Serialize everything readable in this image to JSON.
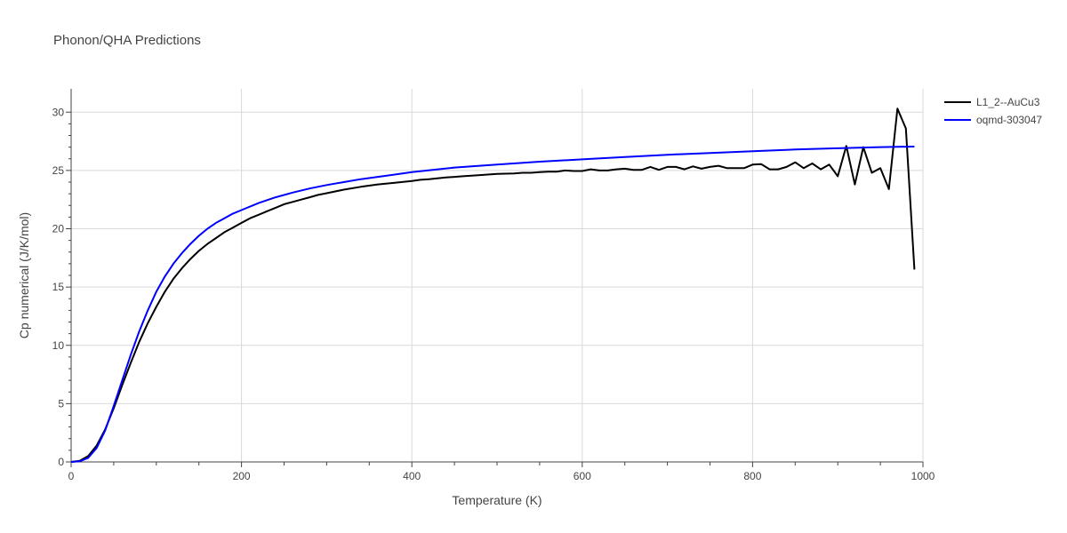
{
  "chart_data": {
    "type": "line",
    "title": "Phonon/QHA Predictions",
    "xlabel": "Temperature (K)",
    "ylabel": "Cp numerical (J/K/mol)",
    "xlim": [
      0,
      1000
    ],
    "ylim": [
      0,
      32
    ],
    "xticks": [
      0,
      200,
      400,
      600,
      800,
      1000
    ],
    "yticks": [
      0,
      5,
      10,
      15,
      20,
      25,
      30
    ],
    "grid": true,
    "legend_position": "top-right",
    "series": [
      {
        "name": "L1_2--AuCu3",
        "color": "#000000",
        "x": [
          0,
          10,
          20,
          30,
          40,
          50,
          60,
          70,
          80,
          90,
          100,
          110,
          120,
          130,
          140,
          150,
          160,
          170,
          180,
          190,
          200,
          210,
          220,
          230,
          240,
          250,
          260,
          270,
          280,
          290,
          300,
          320,
          340,
          360,
          380,
          400,
          410,
          420,
          440,
          460,
          480,
          500,
          520,
          530,
          540,
          550,
          560,
          570,
          580,
          590,
          600,
          610,
          620,
          630,
          640,
          650,
          660,
          670,
          680,
          690,
          700,
          710,
          720,
          730,
          740,
          750,
          760,
          770,
          780,
          790,
          800,
          810,
          820,
          830,
          840,
          850,
          860,
          870,
          880,
          890,
          900,
          910,
          920,
          930,
          940,
          950,
          960,
          970,
          980,
          990
        ],
        "y": [
          0,
          0.1,
          0.5,
          1.4,
          2.8,
          4.6,
          6.6,
          8.5,
          10.3,
          11.9,
          13.3,
          14.6,
          15.7,
          16.6,
          17.4,
          18.1,
          18.7,
          19.2,
          19.7,
          20.1,
          20.5,
          20.9,
          21.2,
          21.5,
          21.8,
          22.1,
          22.3,
          22.5,
          22.7,
          22.9,
          23.05,
          23.35,
          23.6,
          23.8,
          23.95,
          24.1,
          24.2,
          24.25,
          24.4,
          24.5,
          24.6,
          24.7,
          24.75,
          24.8,
          24.8,
          24.85,
          24.9,
          24.9,
          25.0,
          24.95,
          24.95,
          25.1,
          25.0,
          25.0,
          25.1,
          25.15,
          25.05,
          25.05,
          25.3,
          25.05,
          25.3,
          25.3,
          25.1,
          25.35,
          25.15,
          25.3,
          25.4,
          25.2,
          25.2,
          25.2,
          25.5,
          25.55,
          25.1,
          25.1,
          25.3,
          25.7,
          25.2,
          25.6,
          25.1,
          25.5,
          24.5,
          27.1,
          23.8,
          27.0,
          24.8,
          25.2,
          23.4,
          30.3,
          28.6,
          16.5
        ]
      },
      {
        "name": "oqmd-303047",
        "color": "#0000ff",
        "x": [
          0,
          10,
          20,
          30,
          40,
          50,
          60,
          70,
          80,
          90,
          100,
          110,
          120,
          130,
          140,
          150,
          160,
          170,
          180,
          190,
          200,
          220,
          240,
          260,
          280,
          300,
          320,
          340,
          360,
          380,
          400,
          450,
          500,
          550,
          600,
          650,
          700,
          750,
          800,
          850,
          900,
          950,
          990
        ],
        "y": [
          0,
          0.05,
          0.35,
          1.2,
          2.7,
          4.8,
          7.0,
          9.2,
          11.2,
          13.0,
          14.6,
          15.9,
          17.0,
          17.9,
          18.7,
          19.4,
          20.0,
          20.5,
          20.9,
          21.3,
          21.6,
          22.2,
          22.7,
          23.1,
          23.45,
          23.75,
          24.0,
          24.25,
          24.45,
          24.65,
          24.85,
          25.25,
          25.5,
          25.75,
          25.95,
          26.15,
          26.35,
          26.5,
          26.65,
          26.8,
          26.9,
          27.0,
          27.05
        ]
      }
    ]
  }
}
